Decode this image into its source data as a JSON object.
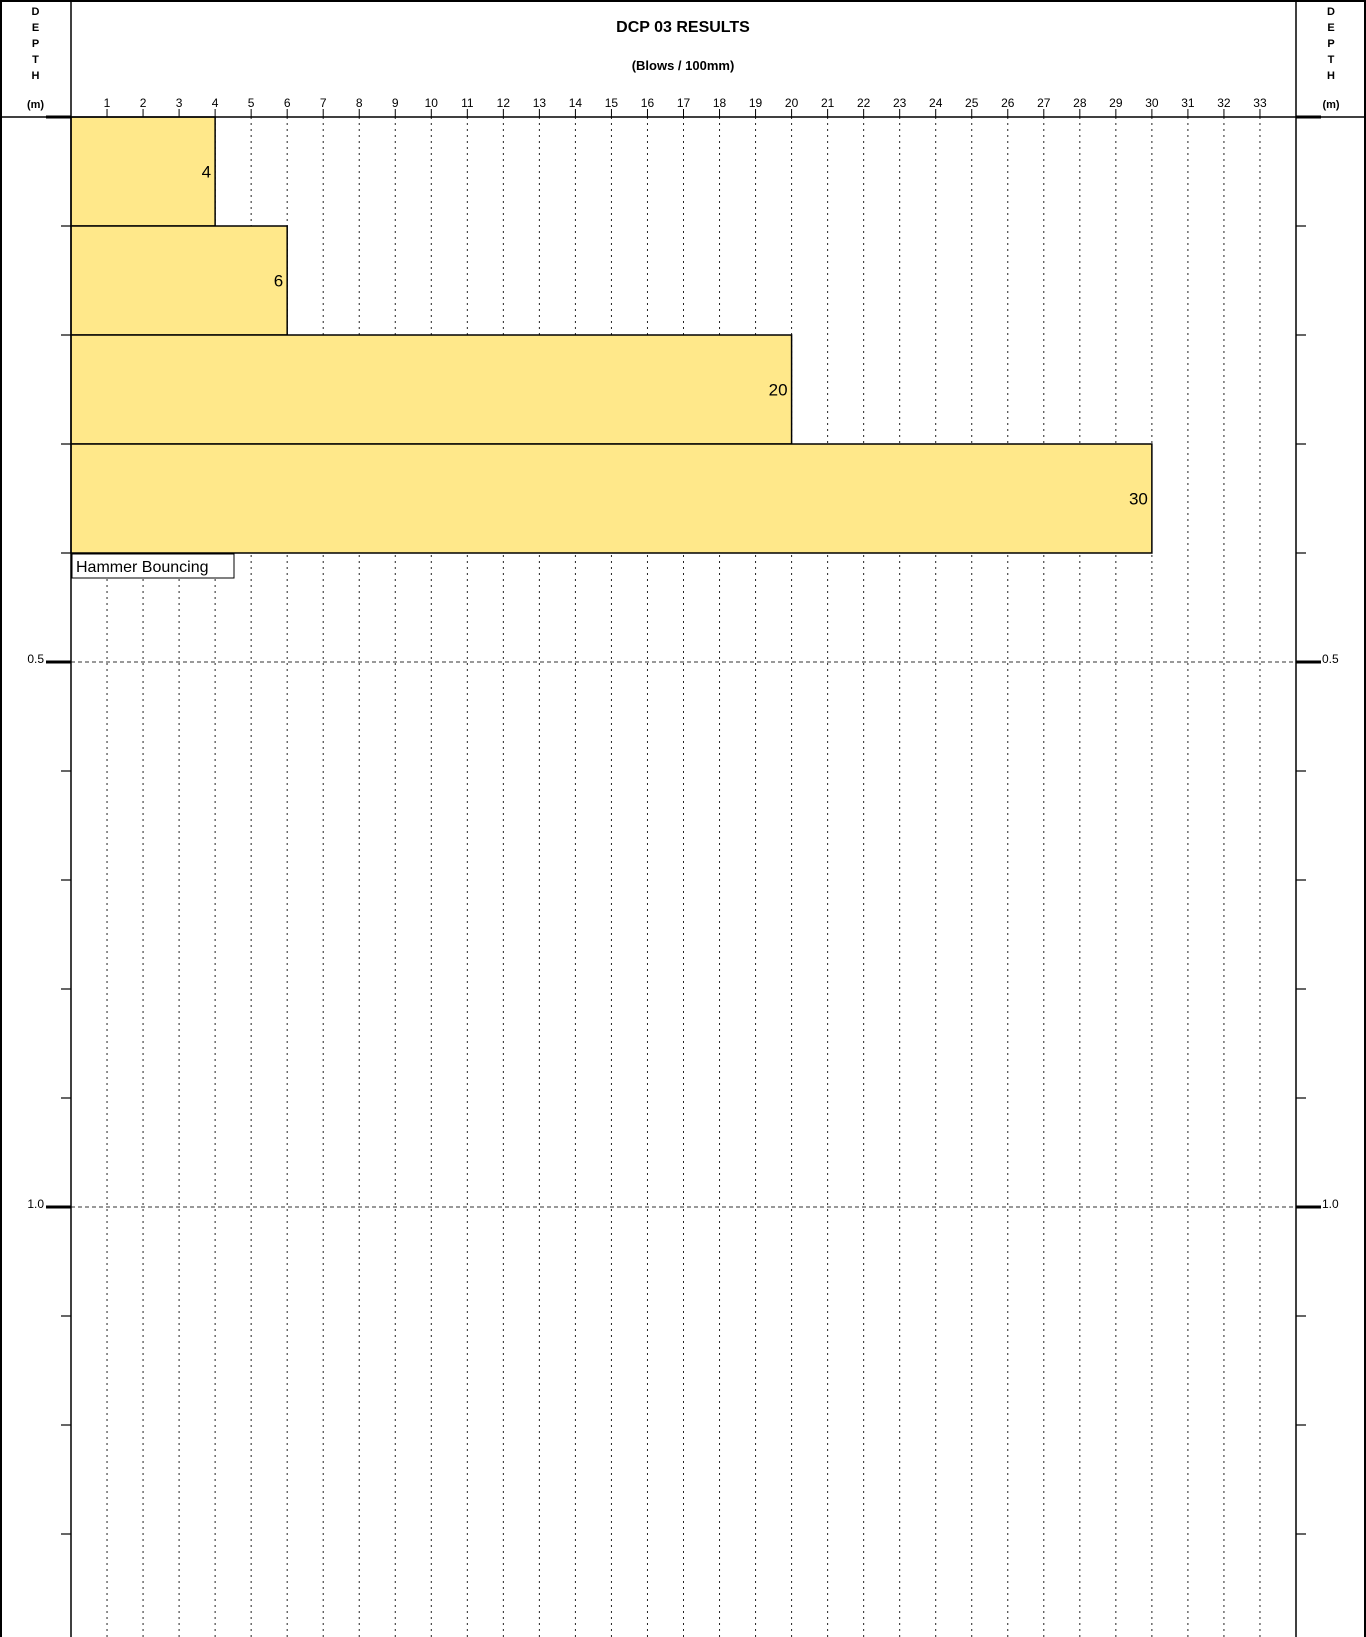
{
  "chart_data": {
    "type": "bar",
    "orientation": "horizontal",
    "title": "DCP 03 RESULTS",
    "subtitle": "(Blows / 100mm)",
    "ylabel_letters": [
      "D",
      "E",
      "P",
      "T",
      "H"
    ],
    "ylabel_unit": "(m)",
    "x_ticks": [
      1,
      2,
      3,
      4,
      5,
      6,
      7,
      8,
      9,
      10,
      11,
      12,
      13,
      14,
      15,
      16,
      17,
      18,
      19,
      20,
      21,
      22,
      23,
      24,
      25,
      26,
      27,
      28,
      29,
      30,
      31,
      32,
      33
    ],
    "xlim": [
      0,
      34
    ],
    "ylim": [
      0,
      1.45
    ],
    "y_step": 0.1,
    "y_labeled_ticks": [
      {
        "value": 0.5,
        "label": "0.5"
      },
      {
        "value": 1.0,
        "label": "1.0"
      }
    ],
    "bars": [
      {
        "depth_from": 0.0,
        "depth_to": 0.1,
        "value": 4,
        "label": "4"
      },
      {
        "depth_from": 0.1,
        "depth_to": 0.2,
        "value": 6,
        "label": "6"
      },
      {
        "depth_from": 0.2,
        "depth_to": 0.3,
        "value": 20,
        "label": "20"
      },
      {
        "depth_from": 0.3,
        "depth_to": 0.4,
        "value": 30,
        "label": "30"
      }
    ],
    "annotation": {
      "text": "Hammer Bouncing",
      "depth": 0.4
    },
    "bar_color": "#FFE88A",
    "grid": true
  }
}
